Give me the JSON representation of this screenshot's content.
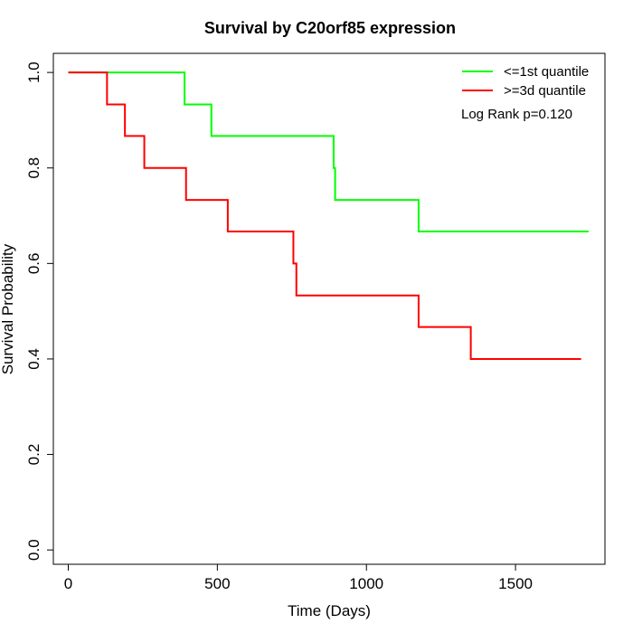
{
  "chart_data": {
    "type": "line",
    "title": "Survival by C20orf85 expression",
    "xlabel": "Time (Days)",
    "ylabel": "Survival Probability",
    "xlim": [
      -50,
      1800
    ],
    "ylim": [
      -0.03,
      1.04
    ],
    "x_ticks": [
      0,
      500,
      1000,
      1500
    ],
    "y_ticks": [
      0.0,
      0.2,
      0.4,
      0.6,
      0.8,
      1.0
    ],
    "x_tick_labels": [
      "0",
      "500",
      "1000",
      "1500"
    ],
    "y_tick_labels": [
      "0.0",
      "0.2",
      "0.4",
      "0.6",
      "0.8",
      "1.0"
    ],
    "grid": false,
    "legend_position": "top-right",
    "series": [
      {
        "name": "<=1st quantile",
        "color": "#00ff00",
        "step": true,
        "x": [
          0,
          390,
          480,
          890,
          895,
          1175,
          1745
        ],
        "y": [
          1.0,
          0.933,
          0.867,
          0.8,
          0.733,
          0.667,
          0.667
        ]
      },
      {
        "name": ">=3d quantile",
        "color": "#ff0000",
        "step": true,
        "x": [
          0,
          130,
          190,
          255,
          395,
          535,
          755,
          765,
          1175,
          1350,
          1720
        ],
        "y": [
          1.0,
          0.933,
          0.867,
          0.8,
          0.733,
          0.667,
          0.6,
          0.533,
          0.467,
          0.4,
          0.4
        ]
      }
    ],
    "annotations": [
      {
        "text": "Log Rank p=0.120"
      }
    ]
  }
}
